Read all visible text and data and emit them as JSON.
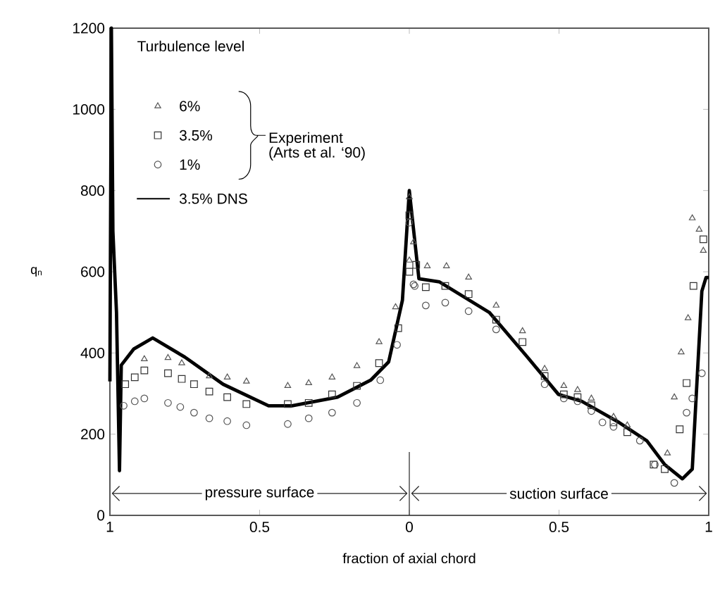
{
  "chart_data": {
    "type": "line",
    "xlabel": "fraction of axial chord",
    "ylabel": "q$_{n}$",
    "legend_title": "Turbulence level",
    "legend": "top left",
    "xlim": [
      -1,
      1
    ],
    "ylim": [
      0,
      1200
    ],
    "xticks": [
      {
        "value": -1,
        "label": "1"
      },
      {
        "value": -0.5,
        "label": "0.5"
      },
      0,
      0.5,
      1
    ],
    "yticks": [
      0,
      200,
      400,
      600,
      800,
      1000,
      1200
    ],
    "grid": false,
    "annotations": [
      "Experiment",
      "(Arts et al. ‘90)",
      "pressure surface",
      "suction surface"
    ],
    "series": [
      {
        "name": "6%",
        "type": "scatter",
        "marker": "triangle",
        "color": "#555555",
        "x": [
          -0.885,
          -0.806,
          -0.76,
          -0.668,
          -0.608,
          -0.544,
          -0.406,
          -0.336,
          -0.258,
          -0.175,
          -0.101,
          -0.046,
          0.0,
          0.0,
          0.014,
          0.06,
          0.124,
          0.198,
          0.29,
          0.378,
          0.452,
          0.516,
          0.562,
          0.608,
          0.682,
          0.728,
          0.862,
          0.885,
          0.908,
          0.931,
          0.945,
          0.968,
          0.982
        ],
        "values": [
          385,
          388,
          375,
          343,
          340,
          330,
          319,
          326,
          340,
          368,
          427,
          513,
          628,
          784,
          673,
          614,
          614,
          586,
          517,
          454,
          361,
          319,
          309,
          288,
          243,
          222,
          153,
          291,
          402,
          486,
          732,
          704,
          652
        ]
      },
      {
        "name": "3.5%",
        "type": "scatter",
        "marker": "square",
        "color": "#333333",
        "x": [
          -0.949,
          -0.917,
          -0.885,
          -0.806,
          -0.76,
          -0.719,
          -0.668,
          -0.608,
          -0.544,
          -0.406,
          -0.336,
          -0.258,
          -0.175,
          -0.101,
          -0.037,
          0.0,
          0.0,
          0.023,
          0.055,
          0.12,
          0.198,
          0.29,
          0.378,
          0.452,
          0.516,
          0.562,
          0.608,
          0.682,
          0.728,
          0.816,
          0.853,
          0.903,
          0.926,
          0.949,
          0.982
        ],
        "values": [
          323,
          340,
          357,
          350,
          336,
          323,
          305,
          291,
          274,
          274,
          277,
          298,
          319,
          375,
          461,
          600,
          739,
          617,
          562,
          565,
          545,
          482,
          427,
          343,
          298,
          291,
          271,
          229,
          205,
          125,
          114,
          212,
          326,
          565,
          680
        ]
      },
      {
        "name": "1%",
        "type": "scatter",
        "marker": "circle",
        "color": "#555555",
        "x": [
          -0.954,
          -0.917,
          -0.885,
          -0.806,
          -0.765,
          -0.719,
          -0.668,
          -0.608,
          -0.544,
          -0.406,
          -0.336,
          -0.258,
          -0.175,
          -0.097,
          -0.041,
          0.018,
          0.0,
          0.014,
          0.055,
          0.12,
          0.198,
          0.29,
          0.452,
          0.516,
          0.562,
          0.608,
          0.645,
          0.682,
          0.77,
          0.82,
          0.885,
          0.926,
          0.945,
          0.977
        ],
        "values": [
          270,
          281,
          288,
          277,
          267,
          253,
          239,
          232,
          222,
          225,
          239,
          253,
          277,
          333,
          420,
          565,
          721,
          569,
          517,
          524,
          503,
          458,
          323,
          288,
          281,
          257,
          229,
          218,
          184,
          125,
          80,
          253,
          288,
          350
        ]
      },
      {
        "name": "3.5%  DNS",
        "marker": "none",
        "line_style": "solid",
        "color": "#000000",
        "x": [
          -1.0,
          -0.995,
          -0.99,
          -0.978,
          -0.968,
          -0.962,
          -0.92,
          -0.857,
          -0.75,
          -0.622,
          -0.47,
          -0.392,
          -0.24,
          -0.129,
          -0.069,
          -0.023,
          0.0,
          0.032,
          0.101,
          0.267,
          0.392,
          0.498,
          0.576,
          0.7,
          0.793,
          0.853,
          0.912,
          0.945,
          0.977,
          0.991,
          1.0
        ],
        "values": [
          330,
          1200,
          700,
          500,
          110,
          370,
          410,
          437,
          390,
          323,
          270,
          270,
          291,
          333,
          378,
          530,
          800,
          583,
          575,
          500,
          392,
          298,
          281,
          229,
          184,
          125,
          90,
          114,
          552,
          586,
          586
        ]
      }
    ]
  }
}
